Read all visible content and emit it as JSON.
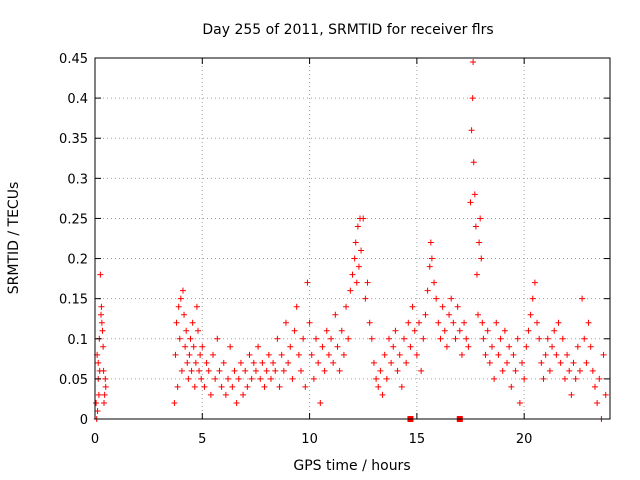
{
  "chart_data": {
    "type": "scatter",
    "title": "Day 255 of 2011, SRMTID for receiver flrs",
    "xlabel": "GPS time / hours",
    "ylabel": "SRMTID / TECUs",
    "xlim": [
      0,
      24
    ],
    "ylim": [
      0,
      0.45
    ],
    "xticks": [
      0,
      5,
      10,
      15,
      20
    ],
    "xtick_labels": [
      "0",
      "5",
      "10",
      "15",
      "20"
    ],
    "yticks": [
      0,
      0.05,
      0.1,
      0.15,
      0.2,
      0.25,
      0.3,
      0.35,
      0.4,
      0.45
    ],
    "ytick_labels": [
      "0",
      "0.05",
      "0.1",
      "0.15",
      "0.2",
      "0.25",
      "0.3",
      "0.35",
      "0.4",
      "0.45"
    ],
    "grid": true,
    "marker": "+",
    "series_color": "#ff0000",
    "square_markers": [
      {
        "x": 14.7,
        "y": 0.0
      },
      {
        "x": 17.0,
        "y": 0.0
      }
    ],
    "points": [
      [
        0.05,
        0.02
      ],
      [
        0.1,
        0.08
      ],
      [
        0.15,
        0.05
      ],
      [
        0.2,
        0.1
      ],
      [
        0.25,
        0.18
      ],
      [
        0.3,
        0.14
      ],
      [
        0.32,
        0.12
      ],
      [
        0.35,
        0.11
      ],
      [
        0.4,
        0.06
      ],
      [
        0.45,
        0.03
      ],
      [
        0.5,
        0.04
      ],
      [
        0.08,
        0.0
      ],
      [
        0.12,
        0.01
      ],
      [
        0.18,
        0.03
      ],
      [
        0.22,
        0.06
      ],
      [
        0.28,
        0.13
      ],
      [
        0.38,
        0.09
      ],
      [
        0.42,
        0.02
      ],
      [
        0.48,
        0.05
      ],
      [
        0.15,
        0.07
      ],
      [
        3.7,
        0.02
      ],
      [
        3.75,
        0.08
      ],
      [
        3.8,
        0.12
      ],
      [
        3.85,
        0.04
      ],
      [
        3.9,
        0.14
      ],
      [
        3.95,
        0.1
      ],
      [
        4.0,
        0.15
      ],
      [
        4.05,
        0.06
      ],
      [
        4.1,
        0.16
      ],
      [
        4.15,
        0.13
      ],
      [
        4.2,
        0.09
      ],
      [
        4.25,
        0.11
      ],
      [
        4.3,
        0.07
      ],
      [
        4.35,
        0.05
      ],
      [
        4.4,
        0.08
      ],
      [
        4.45,
        0.1
      ],
      [
        4.5,
        0.06
      ],
      [
        4.55,
        0.12
      ],
      [
        4.6,
        0.09
      ],
      [
        4.65,
        0.04
      ],
      [
        4.7,
        0.07
      ],
      [
        4.75,
        0.14
      ],
      [
        4.8,
        0.11
      ],
      [
        4.85,
        0.06
      ],
      [
        4.9,
        0.08
      ],
      [
        4.95,
        0.05
      ],
      [
        5.0,
        0.09
      ],
      [
        5.1,
        0.04
      ],
      [
        5.2,
        0.07
      ],
      [
        5.3,
        0.06
      ],
      [
        5.4,
        0.03
      ],
      [
        5.5,
        0.08
      ],
      [
        5.6,
        0.05
      ],
      [
        5.7,
        0.1
      ],
      [
        5.8,
        0.06
      ],
      [
        5.9,
        0.04
      ],
      [
        6.0,
        0.07
      ],
      [
        6.1,
        0.03
      ],
      [
        6.2,
        0.05
      ],
      [
        6.3,
        0.09
      ],
      [
        6.4,
        0.04
      ],
      [
        6.5,
        0.06
      ],
      [
        6.6,
        0.02
      ],
      [
        6.7,
        0.05
      ],
      [
        6.8,
        0.07
      ],
      [
        6.9,
        0.03
      ],
      [
        7.0,
        0.06
      ],
      [
        7.1,
        0.04
      ],
      [
        7.2,
        0.08
      ],
      [
        7.3,
        0.05
      ],
      [
        7.4,
        0.07
      ],
      [
        7.5,
        0.06
      ],
      [
        7.6,
        0.09
      ],
      [
        7.7,
        0.05
      ],
      [
        7.8,
        0.07
      ],
      [
        7.9,
        0.04
      ],
      [
        8.0,
        0.06
      ],
      [
        8.1,
        0.08
      ],
      [
        8.2,
        0.05
      ],
      [
        8.3,
        0.07
      ],
      [
        8.4,
        0.06
      ],
      [
        8.5,
        0.1
      ],
      [
        8.6,
        0.04
      ],
      [
        8.7,
        0.08
      ],
      [
        8.8,
        0.06
      ],
      [
        8.9,
        0.12
      ],
      [
        9.0,
        0.07
      ],
      [
        9.1,
        0.09
      ],
      [
        9.2,
        0.05
      ],
      [
        9.3,
        0.11
      ],
      [
        9.4,
        0.14
      ],
      [
        9.5,
        0.08
      ],
      [
        9.6,
        0.06
      ],
      [
        9.7,
        0.1
      ],
      [
        9.8,
        0.04
      ],
      [
        9.9,
        0.17
      ],
      [
        10.0,
        0.12
      ],
      [
        10.1,
        0.08
      ],
      [
        10.2,
        0.05
      ],
      [
        10.3,
        0.1
      ],
      [
        10.4,
        0.07
      ],
      [
        10.5,
        0.02
      ],
      [
        10.6,
        0.09
      ],
      [
        10.7,
        0.06
      ],
      [
        10.8,
        0.11
      ],
      [
        10.9,
        0.08
      ],
      [
        11.0,
        0.1
      ],
      [
        11.1,
        0.07
      ],
      [
        11.2,
        0.13
      ],
      [
        11.3,
        0.09
      ],
      [
        11.4,
        0.06
      ],
      [
        11.5,
        0.11
      ],
      [
        11.6,
        0.08
      ],
      [
        11.7,
        0.14
      ],
      [
        11.8,
        0.1
      ],
      [
        11.9,
        0.16
      ],
      [
        12.0,
        0.18
      ],
      [
        12.1,
        0.2
      ],
      [
        12.15,
        0.22
      ],
      [
        12.2,
        0.17
      ],
      [
        12.25,
        0.24
      ],
      [
        12.3,
        0.19
      ],
      [
        12.35,
        0.25
      ],
      [
        12.4,
        0.21
      ],
      [
        12.5,
        0.25
      ],
      [
        12.6,
        0.15
      ],
      [
        12.7,
        0.17
      ],
      [
        12.8,
        0.12
      ],
      [
        12.9,
        0.1
      ],
      [
        13.0,
        0.07
      ],
      [
        13.1,
        0.05
      ],
      [
        13.2,
        0.04
      ],
      [
        13.3,
        0.06
      ],
      [
        13.4,
        0.03
      ],
      [
        13.5,
        0.08
      ],
      [
        13.6,
        0.05
      ],
      [
        13.7,
        0.1
      ],
      [
        13.8,
        0.07
      ],
      [
        13.9,
        0.09
      ],
      [
        14.0,
        0.11
      ],
      [
        14.1,
        0.06
      ],
      [
        14.2,
        0.08
      ],
      [
        14.3,
        0.04
      ],
      [
        14.4,
        0.1
      ],
      [
        14.5,
        0.07
      ],
      [
        14.6,
        0.12
      ],
      [
        14.7,
        0.09
      ],
      [
        14.8,
        0.14
      ],
      [
        14.9,
        0.11
      ],
      [
        15.0,
        0.08
      ],
      [
        15.1,
        0.12
      ],
      [
        15.2,
        0.06
      ],
      [
        15.3,
        0.1
      ],
      [
        15.4,
        0.13
      ],
      [
        15.5,
        0.16
      ],
      [
        15.6,
        0.19
      ],
      [
        15.65,
        0.22
      ],
      [
        15.7,
        0.2
      ],
      [
        15.8,
        0.17
      ],
      [
        15.9,
        0.15
      ],
      [
        16.0,
        0.12
      ],
      [
        16.1,
        0.1
      ],
      [
        16.2,
        0.14
      ],
      [
        16.3,
        0.11
      ],
      [
        16.4,
        0.09
      ],
      [
        16.5,
        0.13
      ],
      [
        16.6,
        0.15
      ],
      [
        16.7,
        0.12
      ],
      [
        16.8,
        0.1
      ],
      [
        16.9,
        0.14
      ],
      [
        17.0,
        0.11
      ],
      [
        17.1,
        0.08
      ],
      [
        17.2,
        0.12
      ],
      [
        17.3,
        0.1
      ],
      [
        17.4,
        0.09
      ],
      [
        17.5,
        0.27
      ],
      [
        17.55,
        0.36
      ],
      [
        17.6,
        0.4
      ],
      [
        17.62,
        0.445
      ],
      [
        17.65,
        0.32
      ],
      [
        17.7,
        0.28
      ],
      [
        17.75,
        0.24
      ],
      [
        17.8,
        0.18
      ],
      [
        17.85,
        0.13
      ],
      [
        17.9,
        0.22
      ],
      [
        17.95,
        0.25
      ],
      [
        18.0,
        0.2
      ],
      [
        18.05,
        0.12
      ],
      [
        18.1,
        0.1
      ],
      [
        18.2,
        0.08
      ],
      [
        18.3,
        0.11
      ],
      [
        18.4,
        0.07
      ],
      [
        18.5,
        0.09
      ],
      [
        18.6,
        0.05
      ],
      [
        18.7,
        0.12
      ],
      [
        18.8,
        0.08
      ],
      [
        18.9,
        0.1
      ],
      [
        19.0,
        0.06
      ],
      [
        19.1,
        0.11
      ],
      [
        19.2,
        0.07
      ],
      [
        19.3,
        0.09
      ],
      [
        19.4,
        0.04
      ],
      [
        19.5,
        0.08
      ],
      [
        19.6,
        0.06
      ],
      [
        19.7,
        0.1
      ],
      [
        19.8,
        0.02
      ],
      [
        19.9,
        0.07
      ],
      [
        20.0,
        0.05
      ],
      [
        20.1,
        0.09
      ],
      [
        20.2,
        0.11
      ],
      [
        20.3,
        0.13
      ],
      [
        20.4,
        0.15
      ],
      [
        20.5,
        0.17
      ],
      [
        20.6,
        0.12
      ],
      [
        20.7,
        0.1
      ],
      [
        20.8,
        0.07
      ],
      [
        20.9,
        0.05
      ],
      [
        21.0,
        0.08
      ],
      [
        21.1,
        0.1
      ],
      [
        21.2,
        0.06
      ],
      [
        21.3,
        0.09
      ],
      [
        21.4,
        0.11
      ],
      [
        21.5,
        0.08
      ],
      [
        21.6,
        0.12
      ],
      [
        21.7,
        0.07
      ],
      [
        21.8,
        0.1
      ],
      [
        21.9,
        0.05
      ],
      [
        22.0,
        0.08
      ],
      [
        22.1,
        0.06
      ],
      [
        22.2,
        0.03
      ],
      [
        22.3,
        0.07
      ],
      [
        22.4,
        0.05
      ],
      [
        22.5,
        0.09
      ],
      [
        22.6,
        0.06
      ],
      [
        22.7,
        0.15
      ],
      [
        22.8,
        0.1
      ],
      [
        22.9,
        0.07
      ],
      [
        23.0,
        0.12
      ],
      [
        23.1,
        0.09
      ],
      [
        23.2,
        0.06
      ],
      [
        23.3,
        0.04
      ],
      [
        23.4,
        0.02
      ],
      [
        23.5,
        0.05
      ],
      [
        23.6,
        0.0
      ],
      [
        23.7,
        0.08
      ],
      [
        23.8,
        0.03
      ]
    ]
  }
}
